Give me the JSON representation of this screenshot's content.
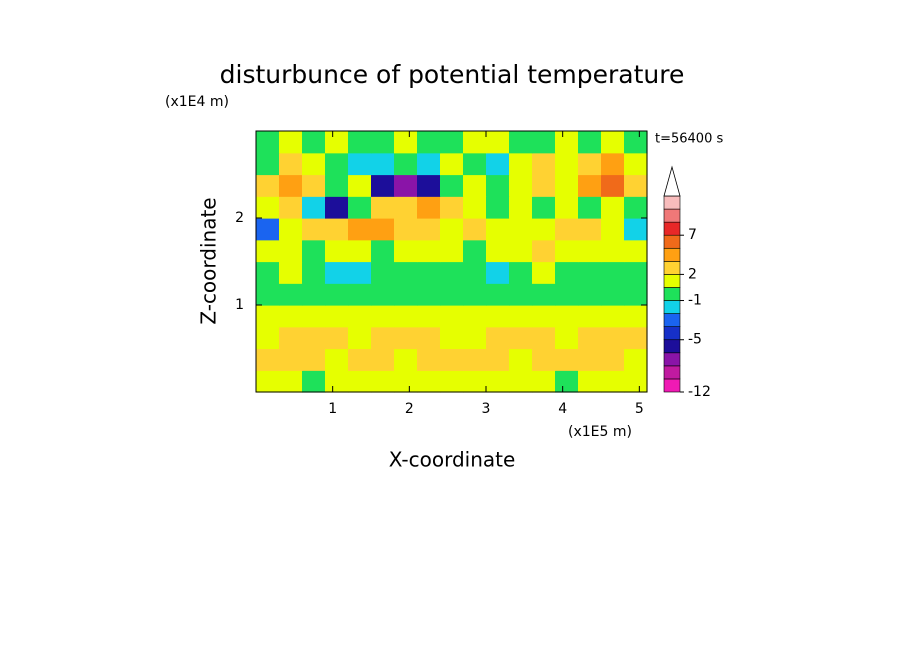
{
  "chart_data": {
    "type": "contour",
    "title": "disturbunce of potential temperature",
    "y_unit": "(x1E4 m)",
    "x_unit": "(x1E5 m)",
    "time_label": "t=56400 s",
    "x_label": "X-coordinate",
    "y_label": "Z-coordinate",
    "xlim": [
      0,
      5.1
    ],
    "xticks": [
      1,
      2,
      3,
      4,
      5
    ],
    "ylim": [
      0,
      3
    ],
    "yticks": [
      1,
      2
    ],
    "x": [
      0.15,
      0.45,
      0.75,
      1.05,
      1.35,
      1.65,
      1.95,
      2.25,
      2.55,
      2.85,
      3.15,
      3.45,
      3.75,
      4.05,
      4.35,
      4.65,
      4.95
    ],
    "y": [
      0.125,
      0.375,
      0.625,
      0.875,
      1.125,
      1.375,
      1.625,
      1.875,
      2.125,
      2.375,
      2.625,
      2.875
    ],
    "z": [
      [
        1.5,
        1.5,
        0,
        1.5,
        1.5,
        1.5,
        1.5,
        1.5,
        1.5,
        1.5,
        1.5,
        1.5,
        1.5,
        0,
        1.5,
        1.5,
        1.5
      ],
      [
        2.5,
        2.5,
        2.5,
        1.5,
        2.5,
        2.5,
        1.5,
        2.5,
        2.5,
        2.5,
        2.5,
        1.5,
        2.5,
        2.5,
        2.5,
        2.5,
        1.5
      ],
      [
        1.5,
        2.5,
        2.5,
        2.5,
        1.5,
        2.5,
        2.5,
        2.5,
        1.5,
        1.5,
        2.5,
        2.5,
        2.5,
        1.5,
        2.5,
        2.5,
        2.5
      ],
      [
        1.5,
        1.5,
        1.5,
        1.5,
        1.5,
        1.5,
        1.5,
        1.5,
        1.5,
        1.5,
        1.5,
        1.5,
        1.5,
        1.5,
        1.5,
        1.5,
        1.5
      ],
      [
        0,
        0,
        0,
        0,
        0,
        0,
        0,
        0,
        0,
        0,
        0,
        0,
        0,
        0,
        0,
        0,
        0
      ],
      [
        0,
        1.5,
        0,
        -1.5,
        -1.5,
        0,
        0,
        0,
        0,
        0,
        -1.5,
        0,
        1.5,
        0,
        0,
        0,
        0
      ],
      [
        1.5,
        1.5,
        0,
        1.5,
        1.5,
        0,
        1.5,
        1.5,
        1.5,
        0,
        1.5,
        1.5,
        2.5,
        1.5,
        1.5,
        1.5,
        1.5
      ],
      [
        -3,
        1.5,
        2.5,
        2.5,
        4,
        4,
        2.5,
        2.5,
        1.5,
        2.5,
        1.5,
        1.5,
        1.5,
        2.5,
        2.5,
        1.5,
        -1.5
      ],
      [
        1.5,
        2.5,
        -1.5,
        -5.5,
        0,
        2.5,
        2.5,
        4,
        2.5,
        1.5,
        0,
        1.5,
        0,
        1.5,
        0,
        1.5,
        0
      ],
      [
        2.5,
        4,
        2.5,
        0,
        1.5,
        -5.5,
        -7,
        -5.5,
        0,
        1.5,
        0,
        1.5,
        2.5,
        1.5,
        4,
        6,
        2.5
      ],
      [
        0,
        2.5,
        1.5,
        0,
        -1.5,
        -1.5,
        0,
        -1.5,
        1.5,
        0,
        -1.5,
        1.5,
        2.5,
        1.5,
        2.5,
        4,
        1.5
      ],
      [
        0,
        1.5,
        0,
        1.5,
        0,
        0,
        1.5,
        0,
        0,
        1.5,
        1.5,
        0,
        0,
        1.5,
        0,
        1.5,
        0
      ]
    ],
    "levels": [
      -12,
      -10,
      -8,
      -6,
      -5,
      -4,
      -2,
      -1,
      1,
      2,
      3,
      5,
      7,
      9,
      11,
      13
    ],
    "colors": [
      "#f01ab4",
      "#c01aa0",
      "#8a14a8",
      "#1c0e9a",
      "#1630c8",
      "#1a64f0",
      "#12d2e8",
      "#1ee15a",
      "#e6ff00",
      "#ffd232",
      "#ffa012",
      "#f06a1a",
      "#e82828",
      "#f07878",
      "#f8bcbc"
    ],
    "colorbar_ticks": [
      -12,
      -5,
      -1,
      2,
      7
    ],
    "extend": "max"
  }
}
